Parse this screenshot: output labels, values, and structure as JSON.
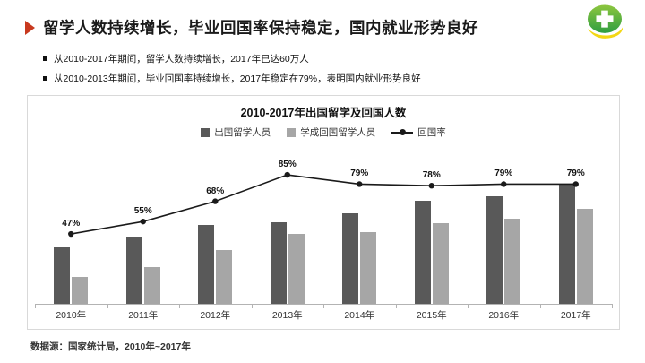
{
  "slide": {
    "title": "留学人数持续增长，毕业回国率保持稳定，国内就业形势良好",
    "bullets": [
      "从2010-2017年期间，留学人数持续增长，2017年已达60万人",
      "从2010-2013年期间，毕业回国率持续增长，2017年稳定在79%，表明国内就业形势良好"
    ],
    "footer": "数据源：国家统计局，2010年~2017年",
    "logo": "green-cross-logo",
    "accent_color": "#c8391f"
  },
  "chart_data": {
    "type": "bar",
    "title": "2010-2017年出国留学及回国人数",
    "categories": [
      "2010年",
      "2011年",
      "2012年",
      "2013年",
      "2014年",
      "2015年",
      "2016年",
      "2017年"
    ],
    "series": [
      {
        "name": "出国留学人员",
        "type": "bar",
        "color": "#595959",
        "unit": "万人",
        "values": [
          28.5,
          34.0,
          40.0,
          41.5,
          46.0,
          52.4,
          54.5,
          60.8
        ]
      },
      {
        "name": "学成回国留学人员",
        "type": "bar",
        "color": "#a6a6a6",
        "unit": "万人",
        "values": [
          13.5,
          18.5,
          27.3,
          35.4,
          36.5,
          40.9,
          43.3,
          48.1
        ]
      },
      {
        "name": "回国率",
        "type": "line",
        "color": "#1a1a1a",
        "values": [
          47,
          55,
          68,
          85,
          79,
          78,
          79,
          79
        ],
        "labels": [
          "47%",
          "55%",
          "68%",
          "85%",
          "79%",
          "78%",
          "79%",
          "79%"
        ]
      }
    ],
    "legend_position": "top",
    "gridlines": false,
    "axes": {
      "x_visible": true,
      "y_visible": false
    }
  }
}
